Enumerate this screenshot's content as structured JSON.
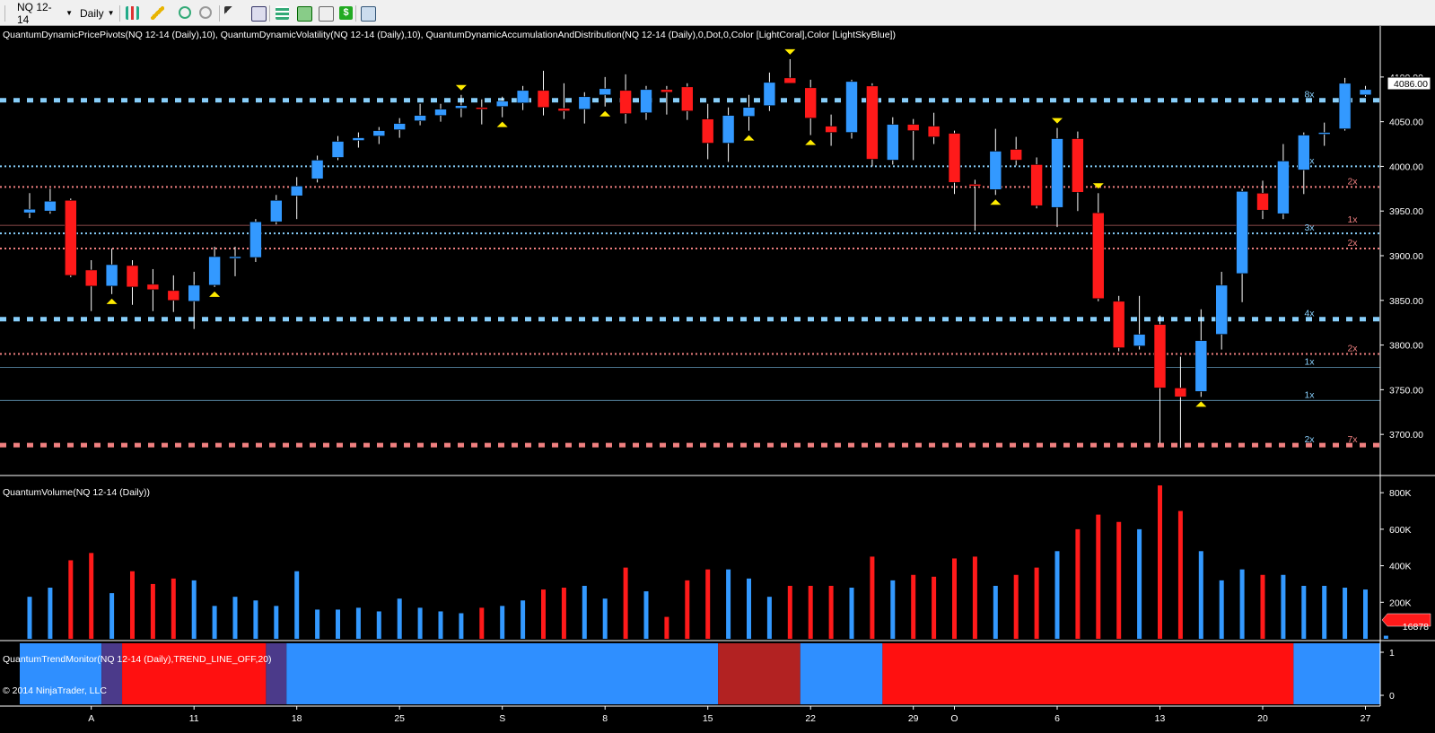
{
  "toolbar": {
    "instrument": "NQ 12-14",
    "period": "Daily",
    "icons": [
      "bar-chart-style-icon",
      "pencil-draw-icon",
      "zoom-in-icon",
      "zoom-out-icon",
      "cursor-icon",
      "find-icon",
      "data-box-icon",
      "properties-icon",
      "chart-trader-icon",
      "dollar-icon",
      "window-icon"
    ]
  },
  "price_panel": {
    "title": "QuantumDynamicPricePivots(NQ 12-14 (Daily),10), QuantumDynamicVolatility(NQ 12-14 (Daily),10), QuantumDynamicAccumulationAndDistribution(NQ 12-14 (Daily),0,Dot,0,Color [LightCoral],Color [LightSkyBlue])",
    "current_price": "4086.00"
  },
  "volume_panel": {
    "title": "QuantumVolume(NQ 12-14 (Daily))",
    "current_volume": "16878"
  },
  "trend_panel": {
    "title": "QuantumTrendMonitor(NQ 12-14 (Daily),TREND_LINE_OFF,20)",
    "y_labels": [
      "1",
      "0"
    ]
  },
  "copyright": "© 2014 NinjaTrader, LLC",
  "colors": {
    "up": "#3399ff",
    "down": "#ff1a1a",
    "neutral": "#b22222",
    "support": "#87cefa",
    "resistance": "#f08080"
  },
  "chart_data": [
    {
      "type": "candlestick",
      "series": "NQ 12-14 Daily",
      "x_labels": [
        "A",
        "11",
        "18",
        "25",
        "S",
        "8",
        "15",
        "22",
        "29",
        "O",
        "6",
        "13",
        "20",
        "27"
      ],
      "x_label_index": [
        3,
        8,
        13,
        18,
        23,
        28,
        33,
        38,
        43,
        45,
        50,
        55,
        60,
        65
      ],
      "y_ticks": [
        3700,
        3750,
        3800,
        3850,
        3900,
        3950,
        4000,
        4050,
        4100
      ],
      "y_range": [
        3660,
        4135
      ],
      "candles": [
        {
          "o": 3948,
          "h": 3970,
          "l": 3942,
          "c": 3952
        },
        {
          "o": 3950,
          "h": 3975,
          "l": 3947,
          "c": 3961
        },
        {
          "o": 3962,
          "h": 3964,
          "l": 3876,
          "c": 3878
        },
        {
          "o": 3884,
          "h": 3895,
          "l": 3838,
          "c": 3866
        },
        {
          "o": 3866,
          "h": 3908,
          "l": 3857,
          "c": 3890
        },
        {
          "o": 3889,
          "h": 3895,
          "l": 3845,
          "c": 3865
        },
        {
          "o": 3868,
          "h": 3885,
          "l": 3838,
          "c": 3862
        },
        {
          "o": 3861,
          "h": 3878,
          "l": 3837,
          "c": 3850
        },
        {
          "o": 3849,
          "h": 3882,
          "l": 3818,
          "c": 3867
        },
        {
          "o": 3867,
          "h": 3910,
          "l": 3865,
          "c": 3899
        },
        {
          "o": 3897,
          "h": 3910,
          "l": 3877,
          "c": 3899
        },
        {
          "o": 3898,
          "h": 3941,
          "l": 3893,
          "c": 3938
        },
        {
          "o": 3938,
          "h": 3968,
          "l": 3935,
          "c": 3962
        },
        {
          "o": 3967,
          "h": 3988,
          "l": 3941,
          "c": 3978
        },
        {
          "o": 3986,
          "h": 4012,
          "l": 3982,
          "c": 4007
        },
        {
          "o": 4010,
          "h": 4034,
          "l": 4007,
          "c": 4028
        },
        {
          "o": 4029,
          "h": 4038,
          "l": 4021,
          "c": 4032
        },
        {
          "o": 4034,
          "h": 4044,
          "l": 4025,
          "c": 4040
        },
        {
          "o": 4041,
          "h": 4054,
          "l": 4032,
          "c": 4048
        },
        {
          "o": 4051,
          "h": 4070,
          "l": 4046,
          "c": 4057
        },
        {
          "o": 4057,
          "h": 4070,
          "l": 4050,
          "c": 4064
        },
        {
          "o": 4065,
          "h": 4080,
          "l": 4055,
          "c": 4068
        },
        {
          "o": 4066,
          "h": 4075,
          "l": 4047,
          "c": 4064
        },
        {
          "o": 4067,
          "h": 4078,
          "l": 4055,
          "c": 4073
        },
        {
          "o": 4071,
          "h": 4090,
          "l": 4063,
          "c": 4085
        },
        {
          "o": 4085,
          "h": 4107,
          "l": 4057,
          "c": 4066
        },
        {
          "o": 4065,
          "h": 4093,
          "l": 4053,
          "c": 4062
        },
        {
          "o": 4064,
          "h": 4083,
          "l": 4048,
          "c": 4078
        },
        {
          "o": 4080,
          "h": 4100,
          "l": 4067,
          "c": 4087
        },
        {
          "o": 4085,
          "h": 4103,
          "l": 4048,
          "c": 4059
        },
        {
          "o": 4060,
          "h": 4090,
          "l": 4052,
          "c": 4086
        },
        {
          "o": 4086,
          "h": 4090,
          "l": 4058,
          "c": 4083
        },
        {
          "o": 4089,
          "h": 4093,
          "l": 4052,
          "c": 4062
        },
        {
          "o": 4053,
          "h": 4070,
          "l": 4008,
          "c": 4026
        },
        {
          "o": 4026,
          "h": 4066,
          "l": 4005,
          "c": 4057
        },
        {
          "o": 4056,
          "h": 4080,
          "l": 4040,
          "c": 4066
        },
        {
          "o": 4068,
          "h": 4105,
          "l": 4062,
          "c": 4094
        },
        {
          "o": 4099,
          "h": 4120,
          "l": 4093,
          "c": 4093
        },
        {
          "o": 4088,
          "h": 4097,
          "l": 4035,
          "c": 4054
        },
        {
          "o": 4045,
          "h": 4058,
          "l": 4023,
          "c": 4038
        },
        {
          "o": 4038,
          "h": 4097,
          "l": 4031,
          "c": 4095
        },
        {
          "o": 4090,
          "h": 4093,
          "l": 4000,
          "c": 4008
        },
        {
          "o": 4007,
          "h": 4055,
          "l": 4002,
          "c": 4047
        },
        {
          "o": 4047,
          "h": 4053,
          "l": 4007,
          "c": 4040
        },
        {
          "o": 4045,
          "h": 4060,
          "l": 4025,
          "c": 4033
        },
        {
          "o": 4037,
          "h": 4040,
          "l": 3969,
          "c": 3982
        },
        {
          "o": 3980,
          "h": 3985,
          "l": 3928,
          "c": 3978
        },
        {
          "o": 3974,
          "h": 4042,
          "l": 3968,
          "c": 4017
        },
        {
          "o": 4019,
          "h": 4033,
          "l": 4001,
          "c": 4007
        },
        {
          "o": 4002,
          "h": 4010,
          "l": 3953,
          "c": 3956
        },
        {
          "o": 3954,
          "h": 4043,
          "l": 3932,
          "c": 4031
        },
        {
          "o": 4031,
          "h": 4039,
          "l": 3950,
          "c": 3971
        },
        {
          "o": 3948,
          "h": 3970,
          "l": 3849,
          "c": 3852
        },
        {
          "o": 3849,
          "h": 3855,
          "l": 3793,
          "c": 3797
        },
        {
          "o": 3799,
          "h": 3855,
          "l": 3795,
          "c": 3812
        },
        {
          "o": 3823,
          "h": 3833,
          "l": 3690,
          "c": 3752
        },
        {
          "o": 3752,
          "h": 3787,
          "l": 3685,
          "c": 3742
        },
        {
          "o": 3748,
          "h": 3840,
          "l": 3742,
          "c": 3805
        },
        {
          "o": 3812,
          "h": 3882,
          "l": 3795,
          "c": 3867
        },
        {
          "o": 3880,
          "h": 3975,
          "l": 3848,
          "c": 3972
        },
        {
          "o": 3970,
          "h": 3984,
          "l": 3941,
          "c": 3951
        },
        {
          "o": 3947,
          "h": 4025,
          "l": 3941,
          "c": 4006
        },
        {
          "o": 3996,
          "h": 4038,
          "l": 3969,
          "c": 4035
        },
        {
          "o": 4038,
          "h": 4049,
          "l": 4023,
          "c": 4038
        },
        {
          "o": 4042,
          "h": 4099,
          "l": 4040,
          "c": 4093
        },
        {
          "o": 4080,
          "h": 4090,
          "l": 4078,
          "c": 4086
        }
      ],
      "pivot_highs": [
        21,
        37,
        50,
        52
      ],
      "pivot_lows": [
        4,
        9,
        23,
        28,
        38,
        35,
        47,
        57
      ],
      "levels": [
        {
          "price": 4074,
          "style": "thick-dot",
          "color": "support",
          "label": "8x"
        },
        {
          "price": 4000,
          "style": "dot",
          "color": "support",
          "label": "4x"
        },
        {
          "price": 3977,
          "style": "dot",
          "color": "resistance",
          "label": "2x"
        },
        {
          "price": 3934,
          "style": "line",
          "color": "resistance",
          "label": "1x"
        },
        {
          "price": 3925,
          "style": "dot",
          "color": "support",
          "label": "3x"
        },
        {
          "price": 3908,
          "style": "dot",
          "color": "resistance",
          "label": "2x"
        },
        {
          "price": 3829,
          "style": "thick-dot",
          "color": "support",
          "label": "4x"
        },
        {
          "price": 3790,
          "style": "dot",
          "color": "resistance",
          "label": "2x"
        },
        {
          "price": 3775,
          "style": "line",
          "color": "support",
          "label": "1x"
        },
        {
          "price": 3738,
          "style": "line",
          "color": "support",
          "label": "1x"
        },
        {
          "price": 3688,
          "style": "thick-dot",
          "color": "resistance",
          "label": "7x"
        },
        {
          "price": 3688,
          "style": "hidden",
          "color": "support",
          "label": "2x"
        }
      ]
    },
    {
      "type": "bar",
      "series": "QuantumVolume",
      "y_ticks": [
        200000,
        400000,
        600000,
        800000
      ],
      "y_tick_labels": [
        "200K",
        "400K",
        "600K",
        "800K"
      ],
      "y_range": [
        0,
        850000
      ],
      "volumes": [
        230000,
        280000,
        430000,
        470000,
        250000,
        370000,
        300000,
        330000,
        320000,
        180000,
        230000,
        210000,
        180000,
        370000,
        160000,
        160000,
        170000,
        150000,
        220000,
        170000,
        150000,
        140000,
        170000,
        180000,
        210000,
        270000,
        280000,
        290000,
        220000,
        390000,
        260000,
        120000,
        320000,
        380000,
        380000,
        330000,
        230000,
        290000,
        290000,
        290000,
        280000,
        450000,
        320000,
        350000,
        340000,
        440000,
        450000,
        290000,
        350000,
        390000,
        480000,
        600000,
        680000,
        640000,
        600000,
        840000,
        700000,
        480000,
        320000,
        380000,
        350000,
        350000,
        290000,
        290000,
        280000,
        270000
      ],
      "last_volume": 16878
    },
    {
      "type": "heatmap",
      "series": "QuantumTrendMonitor",
      "segments": [
        {
          "from": 0,
          "to": 4,
          "state": "up"
        },
        {
          "from": 4,
          "to": 5,
          "state": "transition"
        },
        {
          "from": 5,
          "to": 12,
          "state": "down"
        },
        {
          "from": 12,
          "to": 13,
          "state": "transition"
        },
        {
          "from": 13,
          "to": 34,
          "state": "up"
        },
        {
          "from": 34,
          "to": 38,
          "state": "neutral"
        },
        {
          "from": 38,
          "to": 42,
          "state": "up"
        },
        {
          "from": 42,
          "to": 62,
          "state": "down"
        },
        {
          "from": 62,
          "to": 66,
          "state": "up"
        }
      ]
    }
  ]
}
